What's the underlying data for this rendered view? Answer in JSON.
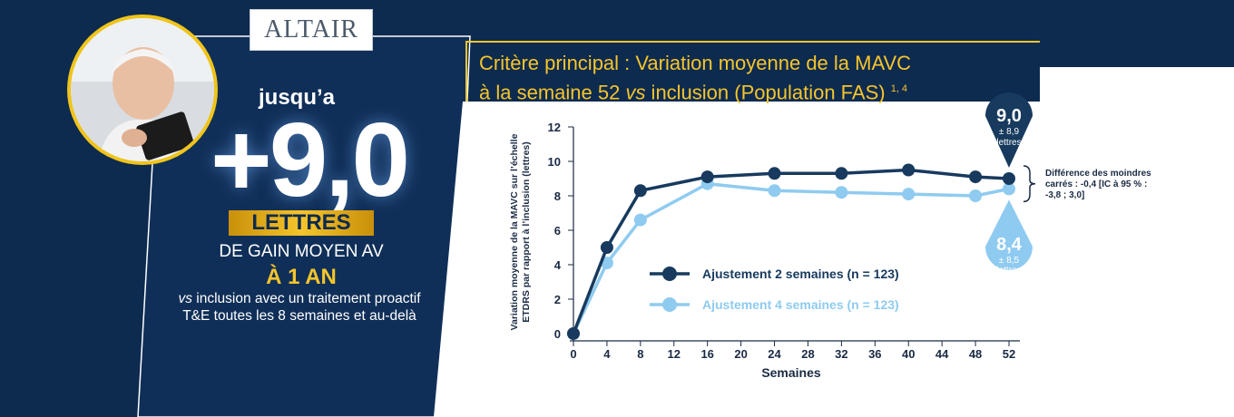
{
  "logo": "ALTAIR",
  "promo": {
    "prefix": "jusqu’a",
    "headline": "+9,0",
    "badge": "LETTRES",
    "gain": "DE GAIN MOYEN AV",
    "when": "À 1 AN",
    "regime_italic": "vs",
    "regime_rest": "inclusion avec un traitement proactif T&E toutes les 8 semaines et au-delà"
  },
  "title": {
    "line1": "Critère principal : Variation moyenne de la MAVC",
    "line2_a": "à la semaine 52 ",
    "line2_italic": "vs",
    "line2_b": " inclusion (Population FAS) ",
    "refs": "1, 4"
  },
  "note": "Différence des moindres carrés : -0,4 [IC à 95 % : -3,8 ; 3,0]",
  "callouts": {
    "top_value": "9,0",
    "top_sub1": "± 8,9",
    "top_sub2": "lettres",
    "bottom_value": "8,4",
    "bottom_sub1": "± 8,5",
    "bottom_sub2": "lettres"
  },
  "colors": {
    "navy": "#0d2a4f",
    "dark_series": "#173a5e",
    "light_series": "#8fcbf0",
    "gold": "#f5c52b"
  },
  "chart_data": {
    "type": "line",
    "title": "Critère principal : Variation moyenne de la MAVC à la semaine 52 vs inclusion (Population FAS)",
    "xlabel": "Semaines",
    "ylabel": "Variation moyenne de la MAVC sur l’échelle ETDRS par rapport à l’inclusion (lettres)",
    "xlim": [
      0,
      52
    ],
    "ylim": [
      0,
      12
    ],
    "xticks": [
      0,
      4,
      8,
      12,
      16,
      20,
      24,
      28,
      32,
      36,
      40,
      44,
      48,
      52
    ],
    "yticks": [
      0,
      2,
      4,
      6,
      8,
      10,
      12
    ],
    "grid": false,
    "legend_position": "lower-left",
    "series": [
      {
        "name": "Ajustement 2 semaines (n = 123)",
        "color": "#173a5e",
        "x": [
          0,
          4,
          8,
          16,
          24,
          32,
          40,
          48,
          52
        ],
        "values": [
          0,
          5.0,
          8.3,
          9.1,
          9.3,
          9.3,
          9.5,
          9.1,
          9.0
        ]
      },
      {
        "name": "Ajustement 4 semaines (n = 123)",
        "color": "#8fcbf0",
        "x": [
          0,
          4,
          8,
          16,
          24,
          32,
          40,
          48,
          52
        ],
        "values": [
          0,
          4.1,
          6.6,
          8.7,
          8.3,
          8.2,
          8.1,
          8.0,
          8.4
        ]
      }
    ]
  }
}
